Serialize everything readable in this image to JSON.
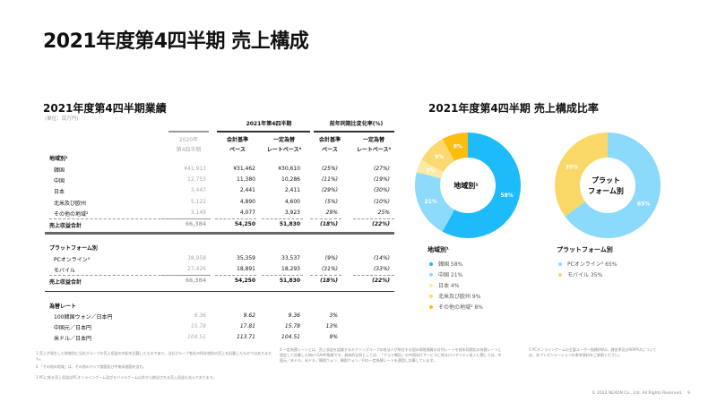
{
  "title": "2021年度第4四半期 売上構成",
  "table": {
    "title": "2021年度第4四半期業績",
    "unit": "(単位：百万円)",
    "group_2021": "2021年第4四半期",
    "group_change": "前年同期比変化率(%)",
    "col_2020_l1": "2020年",
    "col_2020_l2": "第4四半期",
    "col_acc_l1": "会計基準",
    "col_acc_l2": "ベース",
    "col_const_l1": "一定為替",
    "col_const_l2": "レートベース⁴",
    "col_chg_acc_l1": "会計基準",
    "col_chg_acc_l2": "ベース",
    "col_chg_const_l1": "一定為替",
    "col_chg_const_l2": "レートベース⁴",
    "region_header": "地域別¹",
    "region_rows": [
      {
        "label": "韓国",
        "v2020": "¥41,913",
        "acc": "¥31,462",
        "const": "¥30,610",
        "chg_acc": "(25%)",
        "chg_const": "(27%)"
      },
      {
        "label": "中国",
        "v2020": "12,753",
        "acc": "11,380",
        "const": "10,286",
        "chg_acc": "(11%)",
        "chg_const": "(19%)"
      },
      {
        "label": "日本",
        "v2020": "3,447",
        "acc": "2,441",
        "const": "2,411",
        "chg_acc": "(29%)",
        "chg_const": "(30%)"
      },
      {
        "label": "北米及び欧州",
        "v2020": "5,122",
        "acc": "4,890",
        "const": "4,600",
        "chg_acc": "(5%)",
        "chg_const": "(10%)"
      },
      {
        "label": "その他の地域²",
        "v2020": "3,149",
        "acc": "4,077",
        "const": "3,923",
        "chg_acc": "29%",
        "chg_const": "25%"
      }
    ],
    "region_total": {
      "label": "売上収益合計",
      "v2020": "66,384",
      "acc": "54,250",
      "const": "51,830",
      "chg_acc": "(18%)",
      "chg_const": "(22%)"
    },
    "platform_header": "プラットフォーム別",
    "platform_rows": [
      {
        "label": "PCオンライン³",
        "v2020": "38,958",
        "acc": "35,359",
        "const": "33,537",
        "chg_acc": "(9%)",
        "chg_const": "(14%)"
      },
      {
        "label": "モバイル",
        "v2020": "27,426",
        "acc": "18,891",
        "const": "18,293",
        "chg_acc": "(31%)",
        "chg_const": "(33%)"
      }
    ],
    "platform_total": {
      "label": "売上収益合計",
      "v2020": "66,384",
      "acc": "54,250",
      "const": "51,830",
      "chg_acc": "(18%)",
      "chg_const": "(22%)"
    },
    "fx_header": "為替レート",
    "fx_rows": [
      {
        "label": "100韓国ウォン／日本円",
        "v2020": "9.36",
        "acc": "9.62",
        "const": "9.36",
        "chg_acc": "3%"
      },
      {
        "label": "中国元／日本円",
        "v2020": "15.78",
        "acc": "17.81",
        "const": "15.78",
        "chg_acc": "13%"
      },
      {
        "label": "米ドル／日本円",
        "v2020": "104.51",
        "acc": "113.71",
        "const": "104.51",
        "chg_acc": "9%"
      }
    ]
  },
  "charts": {
    "title": "2021年度第4四半期 売上構成比率",
    "region": {
      "center_label": "地域別¹",
      "legend_title": "地域別¹",
      "slices": [
        {
          "name": "韓国",
          "value": 58,
          "label": "58%",
          "legend": "韓国 58%",
          "color": "#1EBBFA"
        },
        {
          "name": "中国",
          "value": 21,
          "label": "21%",
          "legend": "中国 21%",
          "color": "#8DDBFB"
        },
        {
          "name": "日本",
          "value": 4,
          "label": "4%",
          "legend": "日本 4%",
          "color": "#FDEAA6"
        },
        {
          "name": "北米及び欧州",
          "value": 9,
          "label": "9%",
          "legend": "北米及び欧州 9%",
          "color": "#FBD970"
        },
        {
          "name": "その他の地域",
          "value": 8,
          "label": "8%",
          "legend": "その他の地域² 8%",
          "color": "#FBBE10"
        }
      ]
    },
    "platform": {
      "center_label_l1": "プラット",
      "center_label_l2": "フォーム別",
      "legend_title": "プラットフォーム別",
      "slices": [
        {
          "name": "PCオンライン",
          "value": 65,
          "label": "65%",
          "legend": "PCオンライン³ 65%",
          "color": "#8BDAFB"
        },
        {
          "name": "モバイル",
          "value": 35,
          "label": "35%",
          "legend": "モバイル 35%",
          "color": "#FAD868"
        }
      ]
    }
  },
  "footnotes": [
    "1  売上が発生した地域別に当社グループの売上収益の内訳を記載したものであり、当社グループ各社の所在地別の売上を記載したものではありません。",
    "2  「その他の地域」は、その他のアジア諸国及び中南米諸国を含む。",
    "3  PCに係る売上収益はPCオンラインゲーム及びモバイルゲーム以外から創出される売上収益も含んでおります。",
    "4  一定為替レートとは、売上収益を認識するネクソングループの各法人が所在する国の現地通貨の対円レートを前年同期比の為替レートに固定して計算したNon-GAAP指標です。具体的な例としては、「アラド戦記」の中国向けサービスに係るロイヤリティ収入に関しては、中国元／米ドル、米ドル／韓国ウォン、韓国ウォン／円の一定為替レートを適用し計算しています。",
    "5  PCオンラインゲームの主要ユーザー指標(MAU、課金率及びARPPU)については、本プレゼンテーションの参考資料をご参照ください。"
  ],
  "copyright": "© 2022 NEXON Co., Ltd. All Rights Reserved.",
  "page_number": "9"
}
